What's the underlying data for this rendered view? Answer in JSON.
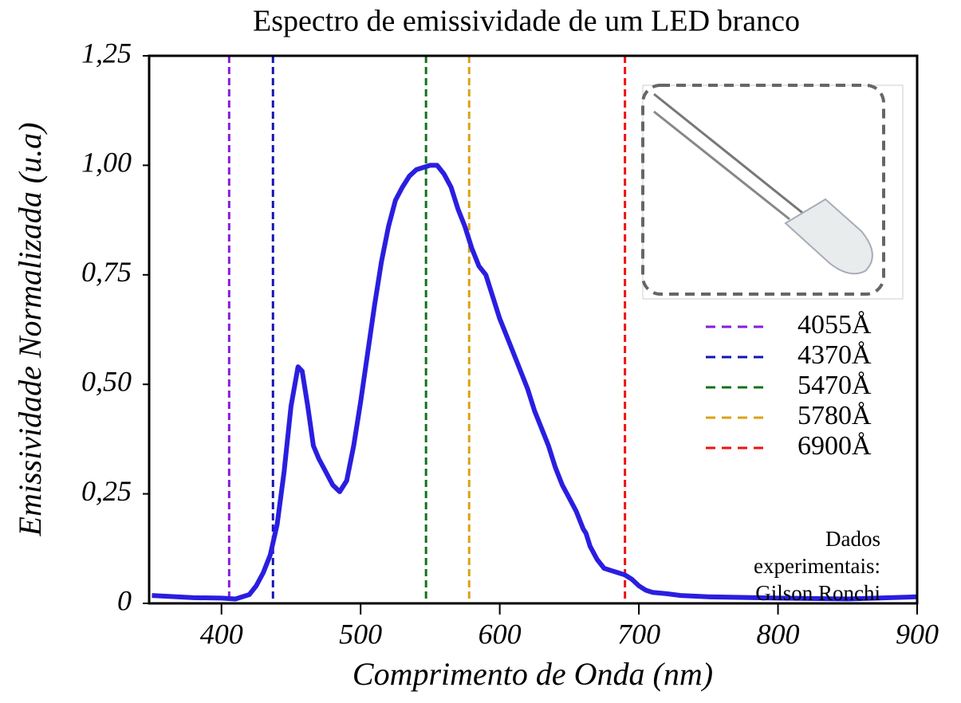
{
  "chart_data": {
    "type": "line",
    "title": "Espectro de emissividade de um LED branco",
    "xlabel": "Comprimento de Onda (nm)",
    "ylabel": "Emissividade Normalizada (u.a)",
    "xlim": [
      348,
      900
    ],
    "ylim": [
      0,
      1.25
    ],
    "xticks": [
      400,
      500,
      600,
      700,
      800,
      900
    ],
    "yticks": [
      0,
      {
        "value": 0.25,
        "label": "0,25"
      },
      {
        "value": 0.5,
        "label": "0,50"
      },
      {
        "value": 0.75,
        "label": "0,75"
      },
      {
        "value": 1,
        "label": "1,00"
      },
      {
        "value": 1.25,
        "label": "1,25"
      }
    ],
    "series": [
      {
        "color": "#2a1ee0",
        "x": [
          350,
          380,
          400,
          410,
          420,
          425,
          430,
          435,
          440,
          445,
          450,
          455,
          458,
          462,
          466,
          470,
          475,
          480,
          485,
          490,
          495,
          500,
          505,
          510,
          515,
          520,
          525,
          530,
          535,
          540,
          545,
          550,
          555,
          560,
          565,
          570,
          575,
          580,
          585,
          590,
          595,
          600,
          605,
          610,
          615,
          620,
          625,
          630,
          635,
          640,
          645,
          650,
          655,
          660,
          662,
          665,
          670,
          675,
          680,
          685,
          690,
          695,
          700,
          705,
          710,
          720,
          730,
          750,
          800,
          850,
          900
        ],
        "values": [
          0.018,
          0.013,
          0.012,
          0.01,
          0.02,
          0.04,
          0.07,
          0.11,
          0.18,
          0.3,
          0.45,
          0.54,
          0.53,
          0.45,
          0.36,
          0.33,
          0.3,
          0.27,
          0.255,
          0.28,
          0.36,
          0.46,
          0.57,
          0.68,
          0.78,
          0.86,
          0.92,
          0.95,
          0.975,
          0.99,
          0.995,
          1.0,
          1.0,
          0.98,
          0.95,
          0.9,
          0.86,
          0.81,
          0.77,
          0.75,
          0.7,
          0.65,
          0.61,
          0.57,
          0.53,
          0.49,
          0.44,
          0.4,
          0.36,
          0.31,
          0.27,
          0.24,
          0.21,
          0.17,
          0.16,
          0.13,
          0.1,
          0.08,
          0.075,
          0.07,
          0.065,
          0.055,
          0.04,
          0.03,
          0.025,
          0.022,
          0.018,
          0.015,
          0.012,
          0.01,
          0.015
        ]
      }
    ],
    "vlines": [
      {
        "x": 405.5,
        "label": "4055Å",
        "color": "#8a1adb"
      },
      {
        "x": 437,
        "label": "4370Å",
        "color": "#1414b4"
      },
      {
        "x": 547,
        "label": "5470Å",
        "color": "#12731a"
      },
      {
        "x": 578,
        "label": "5780Å",
        "color": "#dba214"
      },
      {
        "x": 690,
        "label": "6900Å",
        "color": "#ee1111"
      }
    ],
    "legend": "right",
    "annotation": [
      "Dados",
      "experimentais:",
      "Gilson Ronchi"
    ]
  }
}
